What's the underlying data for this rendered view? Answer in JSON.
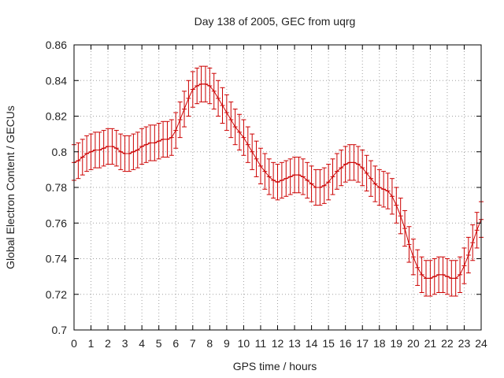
{
  "chart_data": {
    "type": "line",
    "title": "Day 138 of 2005, GEC from uqrg",
    "xlabel": "GPS time / hours",
    "ylabel": "Global Electron Content / GECUs",
    "xlim": [
      0,
      24
    ],
    "ylim": [
      0.7,
      0.86
    ],
    "xticks": [
      0,
      1,
      2,
      3,
      4,
      5,
      6,
      7,
      8,
      9,
      10,
      11,
      12,
      13,
      14,
      15,
      16,
      17,
      18,
      19,
      20,
      21,
      22,
      23,
      24
    ],
    "xtick_labels": [
      "0",
      "1",
      "2",
      "3",
      "4",
      "5",
      "6",
      "7",
      "8",
      "9",
      "10",
      "11",
      "12",
      "13",
      "14",
      "15",
      "16",
      "17",
      "18",
      "19",
      "20",
      "21",
      "22",
      "23",
      "24"
    ],
    "yticks": [
      0.7,
      0.72,
      0.74,
      0.76,
      0.78,
      0.8,
      0.82,
      0.84,
      0.86
    ],
    "ytick_labels": [
      "0.7",
      "0.72",
      "0.74",
      "0.76",
      "0.78",
      "0.8",
      "0.82",
      "0.84",
      "0.86"
    ],
    "grid": true,
    "error_bar_halfwidth": 0.01,
    "series_color": "#cc0000",
    "series": [
      {
        "x": [
          0.0,
          0.25,
          0.5,
          0.75,
          1.0,
          1.25,
          1.5,
          1.75,
          2.0,
          2.25,
          2.5,
          2.75,
          3.0,
          3.25,
          3.5,
          3.75,
          4.0,
          4.25,
          4.5,
          4.75,
          5.0,
          5.25,
          5.5,
          5.75,
          6.0,
          6.25,
          6.5,
          6.75,
          7.0,
          7.25,
          7.5,
          7.75,
          8.0,
          8.25,
          8.5,
          8.75,
          9.0,
          9.25,
          9.5,
          9.75,
          10.0,
          10.25,
          10.5,
          10.75,
          11.0,
          11.25,
          11.5,
          11.75,
          12.0,
          12.25,
          12.5,
          12.75,
          13.0,
          13.25,
          13.5,
          13.75,
          14.0,
          14.25,
          14.5,
          14.75,
          15.0,
          15.25,
          15.5,
          15.75,
          16.0,
          16.25,
          16.5,
          16.75,
          17.0,
          17.25,
          17.5,
          17.75,
          18.0,
          18.25,
          18.5,
          18.75,
          19.0,
          19.25,
          19.5,
          19.75,
          20.0,
          20.25,
          20.5,
          20.75,
          21.0,
          21.25,
          21.5,
          21.75,
          22.0,
          22.25,
          22.5,
          22.75,
          23.0,
          23.25,
          23.5,
          23.75,
          24.0
        ],
        "y": [
          0.794,
          0.795,
          0.797,
          0.799,
          0.8,
          0.801,
          0.801,
          0.802,
          0.803,
          0.803,
          0.802,
          0.8,
          0.799,
          0.799,
          0.8,
          0.801,
          0.803,
          0.804,
          0.805,
          0.805,
          0.806,
          0.807,
          0.807,
          0.808,
          0.812,
          0.818,
          0.824,
          0.83,
          0.835,
          0.837,
          0.838,
          0.838,
          0.837,
          0.834,
          0.83,
          0.826,
          0.822,
          0.818,
          0.814,
          0.811,
          0.808,
          0.804,
          0.8,
          0.796,
          0.792,
          0.789,
          0.786,
          0.784,
          0.783,
          0.784,
          0.785,
          0.786,
          0.787,
          0.787,
          0.786,
          0.784,
          0.782,
          0.78,
          0.78,
          0.781,
          0.783,
          0.786,
          0.789,
          0.791,
          0.793,
          0.794,
          0.794,
          0.793,
          0.791,
          0.788,
          0.785,
          0.782,
          0.78,
          0.779,
          0.778,
          0.775,
          0.77,
          0.764,
          0.757,
          0.748,
          0.741,
          0.735,
          0.731,
          0.729,
          0.729,
          0.73,
          0.731,
          0.731,
          0.73,
          0.729,
          0.729,
          0.731,
          0.736,
          0.742,
          0.749,
          0.756,
          0.762
        ]
      }
    ]
  }
}
